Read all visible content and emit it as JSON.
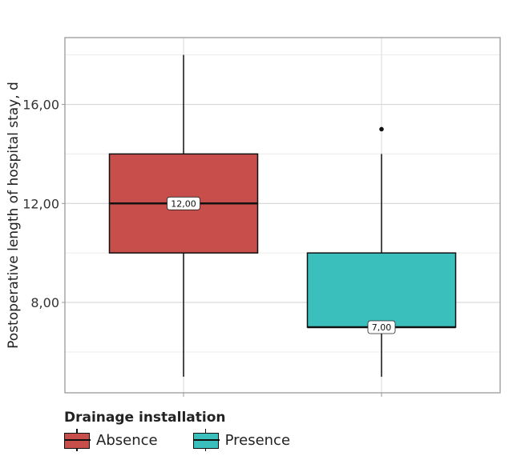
{
  "chart_data": {
    "type": "boxplot",
    "title": "",
    "xlabel": "",
    "ylabel": "Postoperative length of hospital stay, d",
    "ylim": [
      4.35,
      18.7
    ],
    "yticks": [
      8,
      12,
      16
    ],
    "ytick_labels": [
      "8,00",
      "12,00",
      "16,00"
    ],
    "minor_gridlines": [
      6,
      10,
      14,
      18
    ],
    "grid": true,
    "legend": {
      "title": "Drainage installation",
      "placement": "bottom-left"
    },
    "series": [
      {
        "name": "Absence",
        "color": "#C84E4C",
        "whisker_low": 5,
        "q1": 10,
        "median": 12,
        "q3": 14,
        "whisker_high": 18,
        "outliers": [],
        "median_label": "12,00"
      },
      {
        "name": "Presence",
        "color": "#3BBFBD",
        "whisker_low": 5,
        "q1": 7,
        "median": 7,
        "q3": 10,
        "whisker_high": 14,
        "outliers": [
          15
        ],
        "median_label": "7,00"
      }
    ]
  }
}
